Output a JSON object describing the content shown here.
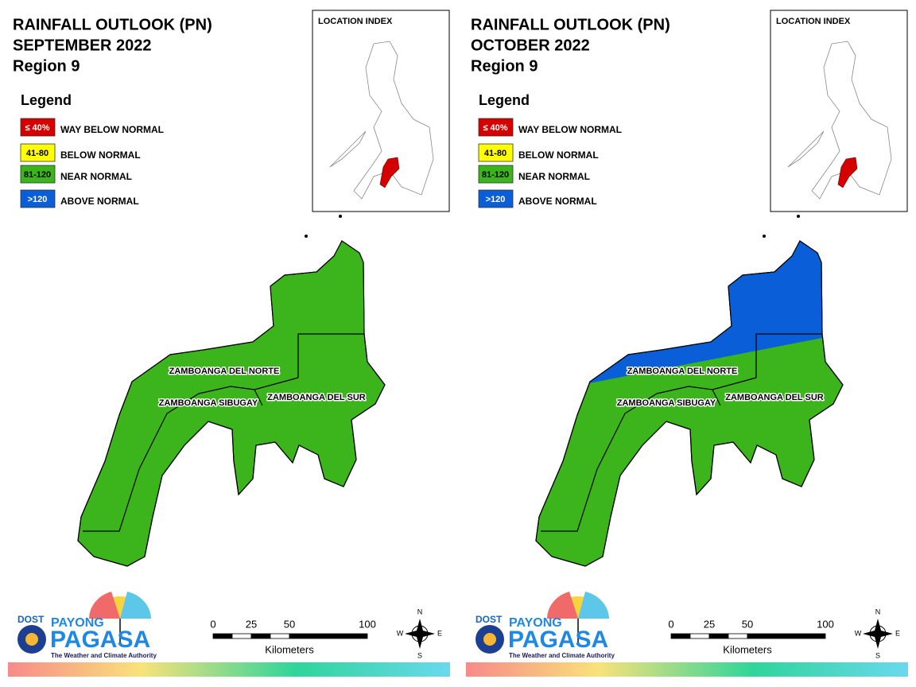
{
  "panels": [
    {
      "title_lines": [
        "RAINFALL OUTLOOK (PN)",
        "SEPTEMBER 2022",
        "Region 9"
      ],
      "legend": {
        "title": "Legend",
        "items": [
          {
            "swatch": "≤ 40%",
            "label": "WAY BELOW NORMAL",
            "color": "#d40000"
          },
          {
            "swatch": "41-80",
            "label": "BELOW NORMAL",
            "color": "#ffff00"
          },
          {
            "swatch": "81-120",
            "label": "NEAR NORMAL",
            "color": "#3cb41c"
          },
          {
            "swatch": ">120",
            "label": "ABOVE NORMAL",
            "color": "#0a5fd8"
          }
        ]
      },
      "location_index": "LOCATION INDEX",
      "provinces": [
        "ZAMBOANGA DEL NORTE",
        "ZAMBOANGA SIBUGAY",
        "ZAMBOANGA DEL SUR"
      ],
      "map_fill": {
        "north": "#3cb41c",
        "rest": "#3cb41c"
      },
      "scale": {
        "ticks": [
          "0",
          "25",
          "50",
          "100"
        ],
        "unit": "Kilometers"
      },
      "compass": [
        "N",
        "E",
        "S",
        "W"
      ],
      "logo": {
        "agency": "DOST",
        "line1": "PAYONG",
        "line2": "PAGASA",
        "tagline": "The Weather and Climate Authority"
      }
    },
    {
      "title_lines": [
        "RAINFALL OUTLOOK (PN)",
        "OCTOBER 2022",
        "Region 9"
      ],
      "legend": {
        "title": "Legend",
        "items": [
          {
            "swatch": "≤ 40%",
            "label": "WAY BELOW NORMAL",
            "color": "#d40000"
          },
          {
            "swatch": "41-80",
            "label": "BELOW NORMAL",
            "color": "#ffff00"
          },
          {
            "swatch": "81-120",
            "label": "NEAR NORMAL",
            "color": "#3cb41c"
          },
          {
            "swatch": ">120",
            "label": "ABOVE NORMAL",
            "color": "#0a5fd8"
          }
        ]
      },
      "location_index": "LOCATION INDEX",
      "provinces": [
        "ZAMBOANGA DEL NORTE",
        "ZAMBOANGA SIBUGAY",
        "ZAMBOANGA DEL SUR"
      ],
      "map_fill": {
        "north": "#0a5fd8",
        "rest": "#3cb41c"
      },
      "scale": {
        "ticks": [
          "0",
          "25",
          "50",
          "100"
        ],
        "unit": "Kilometers"
      },
      "compass": [
        "N",
        "E",
        "S",
        "W"
      ],
      "logo": {
        "agency": "DOST",
        "line1": "PAYONG",
        "line2": "PAGASA",
        "tagline": "The Weather and Climate Authority"
      }
    }
  ]
}
